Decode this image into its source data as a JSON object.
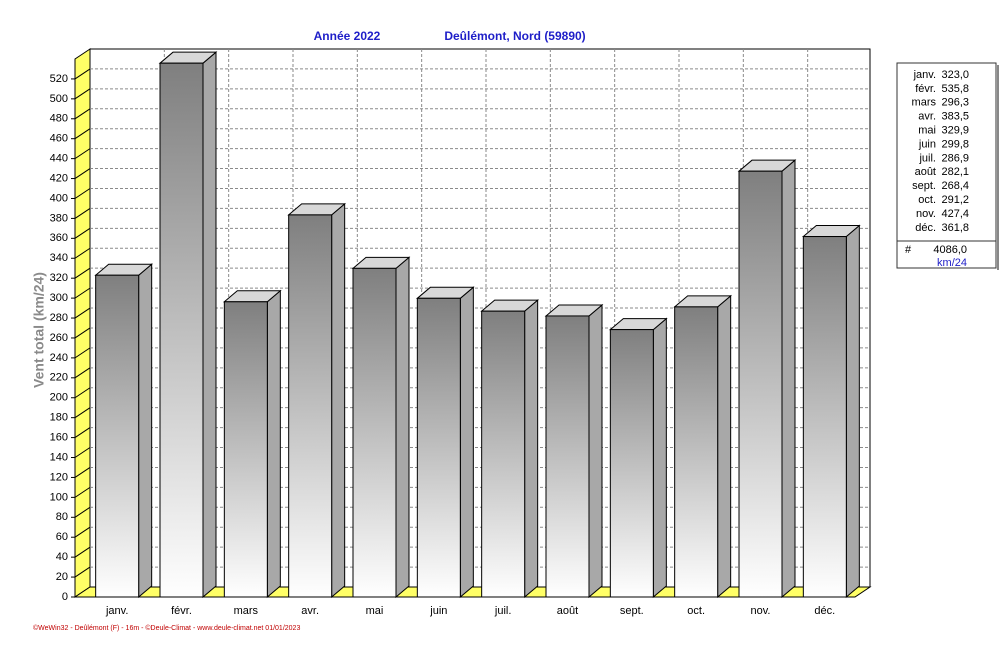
{
  "chart_data": {
    "type": "bar3d",
    "title": "Année  2022",
    "subtitle": "Deûlémont, Nord (59890)",
    "y_label": "Vent total  (km/24)",
    "footer": "©WeWin32 - Deûlémont (F) - 16m - ©Deule-Climat - www.deule-climat.net  01/01/2023",
    "categories": [
      "janv.",
      "févr.",
      "mars",
      "avr.",
      "mai",
      "juin",
      "juil.",
      "août",
      "sept.",
      "oct.",
      "nov.",
      "déc."
    ],
    "values": [
      323.0,
      535.8,
      296.3,
      383.5,
      329.9,
      299.8,
      286.9,
      282.1,
      268.4,
      291.2,
      427.4,
      361.8
    ],
    "value_labels": [
      "323,0",
      "535,8",
      "296,3",
      "383,5",
      "329,9",
      "299,8",
      "286,9",
      "282,1",
      "268,4",
      "291,2",
      "427,4",
      "361,8"
    ],
    "total_symbol": "#",
    "total": {
      "value": 4086.0,
      "label": "4086,0"
    },
    "total_unit": "km/24",
    "ylim": [
      0,
      540
    ],
    "yticks": [
      0,
      20,
      40,
      60,
      80,
      100,
      120,
      140,
      160,
      180,
      200,
      220,
      240,
      260,
      280,
      300,
      320,
      340,
      360,
      380,
      400,
      420,
      440,
      460,
      480,
      500,
      520
    ],
    "grid": true,
    "color": "#808080",
    "wall_color": "#ffff66"
  }
}
